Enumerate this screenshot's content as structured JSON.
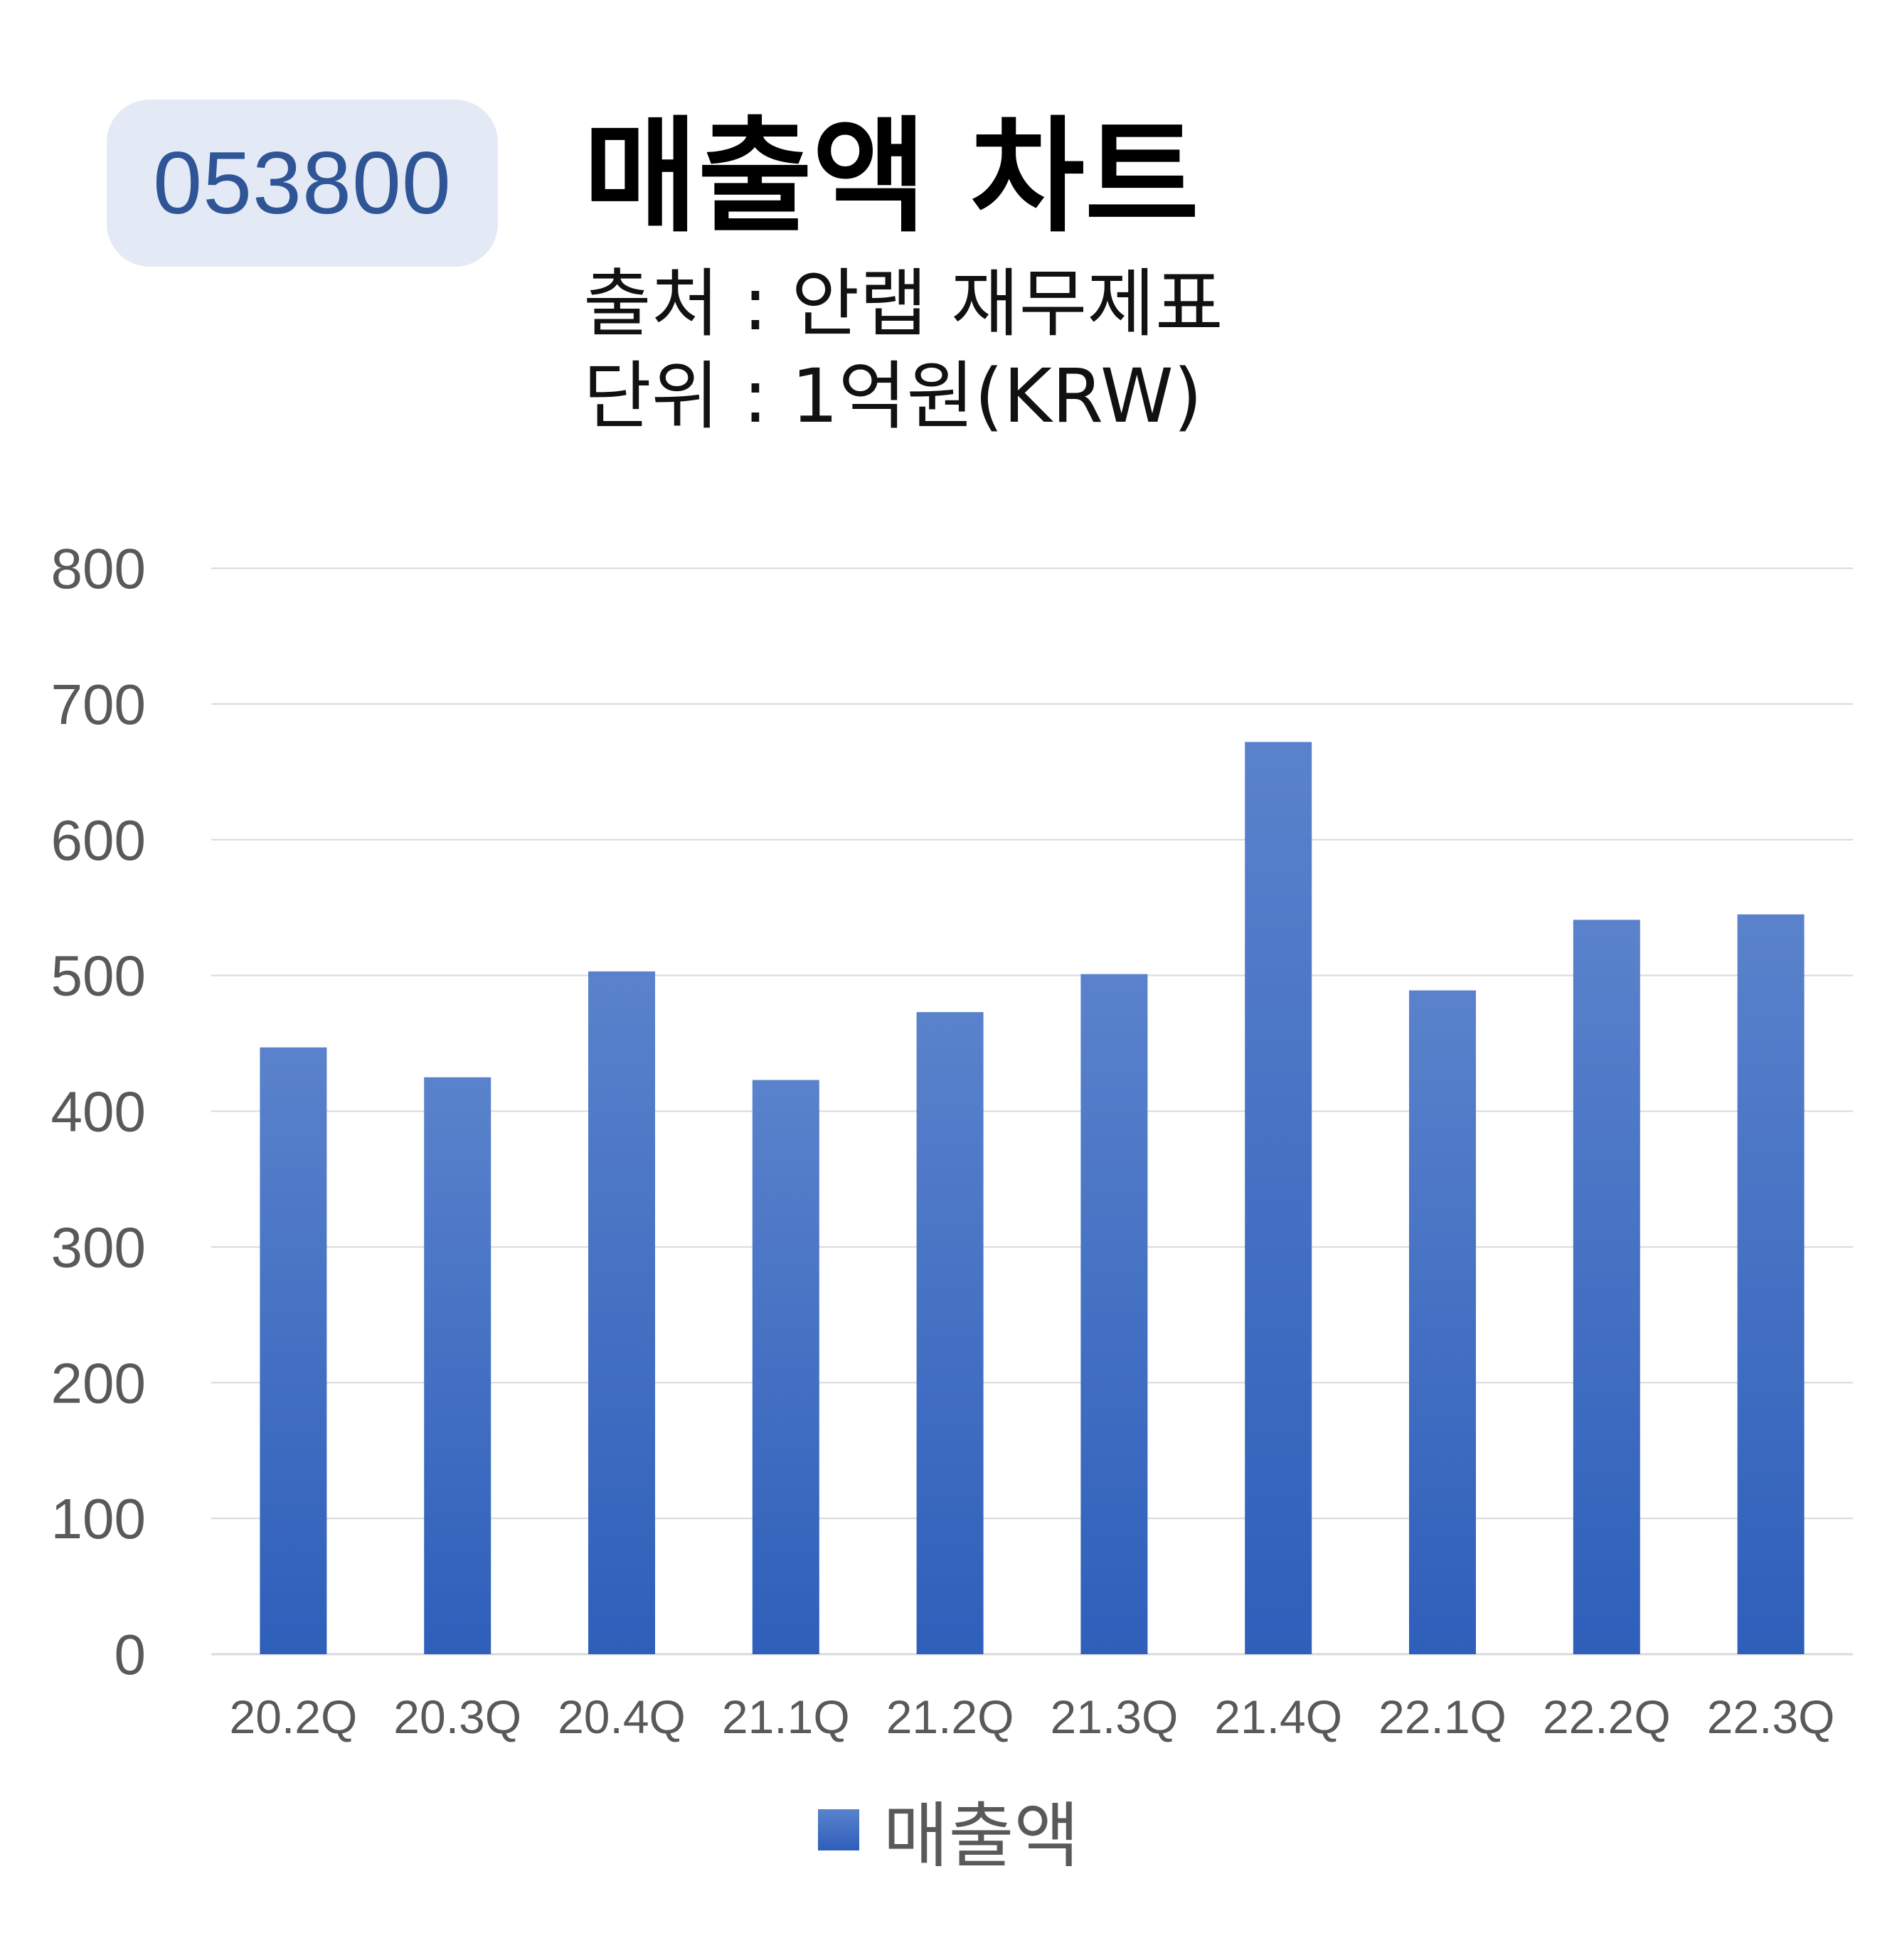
{
  "badge": {
    "code": "053800"
  },
  "header": {
    "title": "매출액 차트",
    "source": "출처 : 안랩 재무제표",
    "unit": "단위 : 1억원(KRW)"
  },
  "colors": {
    "bar_top": "#5a82cc",
    "bar_bottom": "#2e5fba",
    "badge_bg": "#e4eaf5",
    "badge_text": "#2f5597",
    "grid": "#d9d9d9",
    "tick_text": "#595959"
  },
  "chart_data": {
    "type": "bar",
    "title": "",
    "xlabel": "",
    "ylabel": "",
    "ylim": [
      0,
      800
    ],
    "yticks": [
      0,
      100,
      200,
      300,
      400,
      500,
      600,
      700,
      800
    ],
    "grid": true,
    "legend_position": "bottom",
    "categories": [
      "20.2Q",
      "20.3Q",
      "20.4Q",
      "21.1Q",
      "21.2Q",
      "21.3Q",
      "21.4Q",
      "22.1Q",
      "22.2Q",
      "22.3Q"
    ],
    "series": [
      {
        "name": "매출액",
        "values": [
          447,
          425,
          503,
          423,
          473,
          501,
          672,
          489,
          541,
          545
        ]
      }
    ]
  }
}
